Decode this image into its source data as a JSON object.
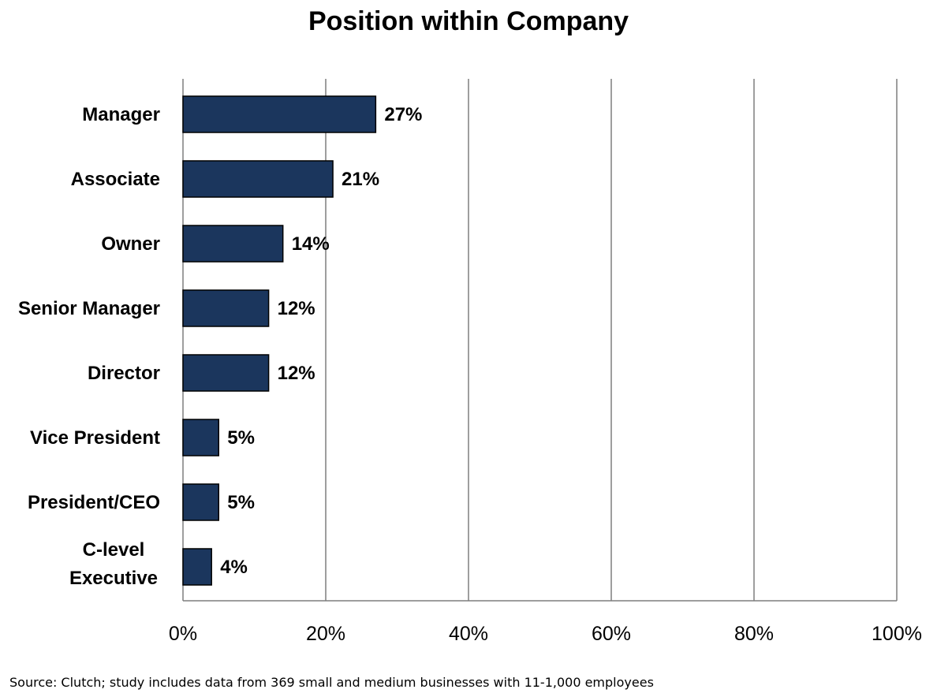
{
  "chart_data": {
    "type": "bar",
    "orientation": "horizontal",
    "title": "Position within Company",
    "categories": [
      "Manager",
      "Associate",
      "Owner",
      "Senior Manager",
      "Director",
      "Vice President",
      "President/CEO",
      "C-level Executive"
    ],
    "values": [
      27,
      21,
      14,
      12,
      12,
      5,
      5,
      4
    ],
    "data_labels": [
      "27%",
      "21%",
      "14%",
      "12%",
      "12%",
      "5%",
      "5%",
      "4%"
    ],
    "x_ticks": [
      "0%",
      "20%",
      "40%",
      "60%",
      "80%",
      "100%"
    ],
    "xlim": [
      0,
      100
    ],
    "xlabel": "",
    "ylabel": "",
    "grid": "vertical",
    "legend": "none",
    "bar_color": "#1b365d",
    "bar_edge_color": "#000000",
    "grid_color": "#7f7f7f"
  },
  "source": "Source: Clutch; study includes data from 369 small and medium businesses with 11-1,000 employees"
}
